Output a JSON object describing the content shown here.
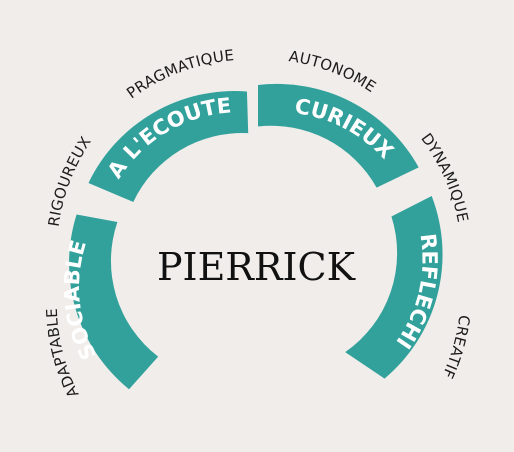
{
  "center": {
    "name": "PIERRICK"
  },
  "segments": [
    {
      "label": "SOCIABLE"
    },
    {
      "label": "A L'ECOUTE"
    },
    {
      "label": "CURIEUX"
    },
    {
      "label": "REFLECHI"
    }
  ],
  "outer_labels": [
    {
      "label": "ADAPTABLE"
    },
    {
      "label": "RIGOUREUX"
    },
    {
      "label": "PRAGMATIQUE"
    },
    {
      "label": "AUTONOME"
    },
    {
      "label": "DYNAMIQUE"
    },
    {
      "label": "CREATIF"
    }
  ],
  "colors": {
    "segment": "#32a19b",
    "background": "#f0edea",
    "text": "#1c1c1c"
  }
}
